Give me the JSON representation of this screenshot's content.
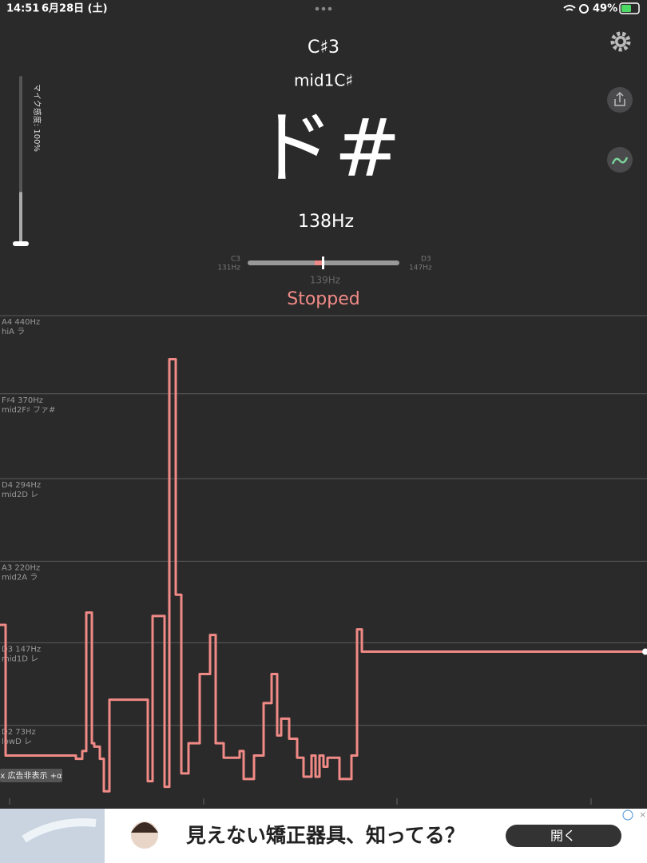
{
  "status_bar": {
    "time": "14:51",
    "date": "6月28日 (土)",
    "battery": "49%"
  },
  "note": {
    "name": "C♯3",
    "range_name": "mid1C♯",
    "solfege": "ド#",
    "frequency": "138Hz"
  },
  "mic": {
    "label": "マイク感度: 100%"
  },
  "tuner": {
    "left_note": "C3",
    "left_hz": "131Hz",
    "right_note": "D3",
    "right_hz": "147Hz",
    "center_hz": "139Hz",
    "status": "Stopped"
  },
  "chart_data": {
    "type": "line",
    "x": [
      0,
      1.4,
      19,
      20.6,
      21.6,
      23,
      23.6,
      25,
      26,
      27.4,
      37,
      38.2,
      41.2,
      42.4,
      44,
      45.4,
      47.2,
      50,
      52.6,
      54,
      56,
      60,
      61,
      63.6,
      66,
      68,
      69.4,
      70.4,
      72.4,
      74.4,
      76,
      78,
      79,
      80,
      81,
      82,
      85,
      88,
      89.4,
      90.6,
      161.6
    ],
    "series": [
      {
        "color": "#f08a86",
        "values": [
          163,
          46,
          43,
          50,
          174,
          57,
          54,
          43,
          14,
          96,
          23,
          171,
          18,
          401,
          190,
          30,
          57,
          119,
          154,
          57,
          44,
          50,
          25,
          46,
          93,
          119,
          64,
          79,
          61,
          44,
          27,
          46,
          27,
          46,
          36,
          44,
          25,
          46,
          159,
          139,
          139
        ]
      }
    ],
    "xlim": [
      0,
      162
    ],
    "ylim": [
      12,
      450
    ],
    "yticks": [
      {
        "value": 73,
        "label": "D2  73Hz"
      },
      {
        "value": 147,
        "label": "D3  147Hz"
      },
      {
        "value": 220,
        "label": "A3  220Hz"
      },
      {
        "value": 294,
        "label": "D4  294Hz"
      },
      {
        "value": 370,
        "label": "F♯4  370Hz"
      },
      {
        "value": 440,
        "label": "A4  440Hz"
      }
    ],
    "ytick_names": [
      "lowD レ",
      "mid1D レ",
      "mid2A ラ",
      "mid2D レ",
      "mid2F♯ ファ#",
      "hiA ラ"
    ],
    "grid": true
  },
  "ad": {
    "remove": "x 広告非表示 +α",
    "text": "見えない矯正器具、知ってる？",
    "button": "開く"
  }
}
